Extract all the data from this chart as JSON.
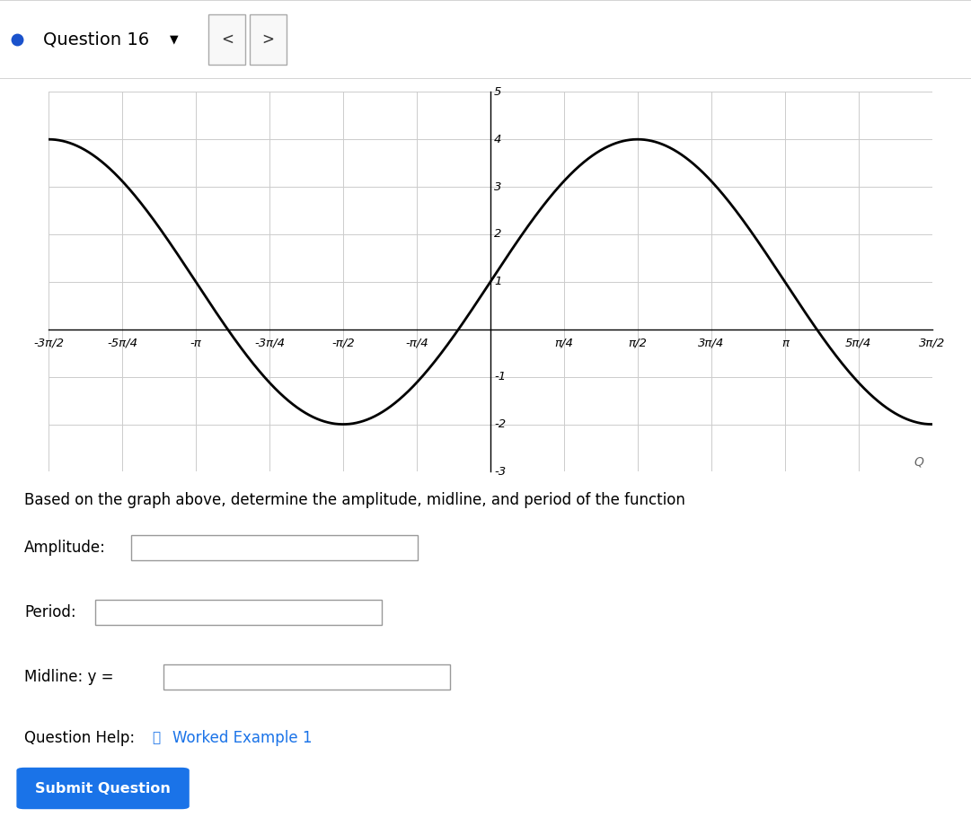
{
  "title": "Question 16",
  "amplitude": 3,
  "midline": 1,
  "period": 6.283185307179586,
  "x_min": -4.71238898038469,
  "x_max": 4.71238898038469,
  "y_min": -3,
  "y_max": 5,
  "x_ticks": [
    -4.71238898038469,
    -3.926990816987242,
    -3.141592653589793,
    -2.356194490192345,
    -1.5707963267948966,
    -0.7853981633974483,
    0.7853981633974483,
    1.5707963267948966,
    2.356194490192345,
    3.141592653589793,
    3.926990816987242,
    4.71238898038469
  ],
  "x_tick_labels": [
    "-3π/2",
    "-5π/4",
    "-π",
    "-3π/4",
    "-π/2",
    "-π/4",
    "π/4",
    "π/2",
    "3π/4",
    "π",
    "5π/4",
    "3π/2"
  ],
  "y_ticks": [
    -3,
    -2,
    -1,
    1,
    2,
    3,
    4,
    5
  ],
  "curve_color": "#000000",
  "background_color": "#ffffff",
  "grid_color": "#cccccc",
  "axes_color": "#000000",
  "text_color": "#000000",
  "description_text": "Based on the graph above, determine the amplitude, midline, and period of the function",
  "label_amplitude": "Amplitude:",
  "label_period": "Period:",
  "label_midline": "Midline: y =",
  "question_help_text": "Question Help:",
  "worked_example_text": "Worked Example 1",
  "submit_text": "Submit Question",
  "submit_bg": "#1a73e8",
  "submit_fg": "#ffffff",
  "worked_example_color": "#1a73e8",
  "header_text": "Question 16",
  "figure_width": 10.81,
  "figure_height": 9.3
}
